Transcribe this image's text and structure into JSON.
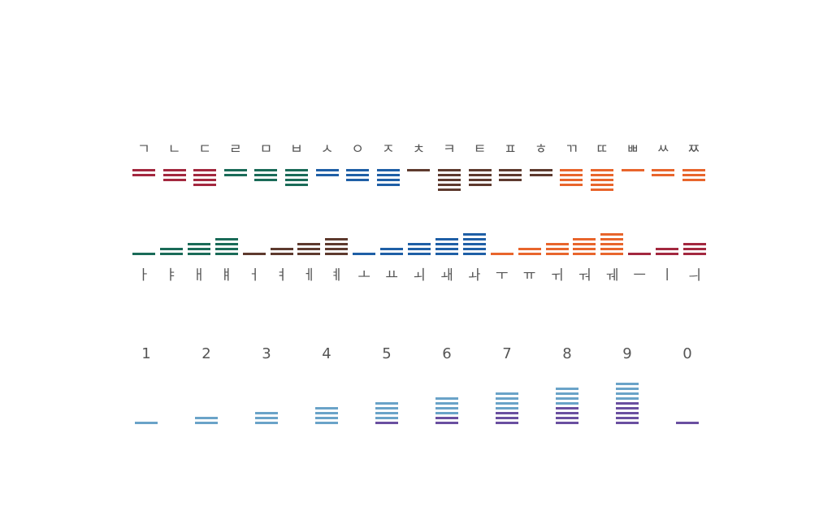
{
  "colors": {
    "crimson": "#a3283f",
    "green": "#1a6b58",
    "blue": "#1f5fa6",
    "brown": "#5e3a2e",
    "orange": "#e8652c",
    "lightblue": "#6aa3c8",
    "purple": "#6a4fa0",
    "label": "#555555"
  },
  "consonants": [
    {
      "glyph": "ㄱ",
      "bars": 2,
      "color": "crimson"
    },
    {
      "glyph": "ㄴ",
      "bars": 3,
      "color": "crimson"
    },
    {
      "glyph": "ㄷ",
      "bars": 4,
      "color": "crimson"
    },
    {
      "glyph": "ㄹ",
      "bars": 2,
      "color": "green"
    },
    {
      "glyph": "ㅁ",
      "bars": 3,
      "color": "green"
    },
    {
      "glyph": "ㅂ",
      "bars": 4,
      "color": "green"
    },
    {
      "glyph": "ㅅ",
      "bars": 2,
      "color": "blue"
    },
    {
      "glyph": "ㅇ",
      "bars": 3,
      "color": "blue"
    },
    {
      "glyph": "ㅈ",
      "bars": 4,
      "color": "blue"
    },
    {
      "glyph": "ㅊ",
      "bars": 1,
      "color": "brown"
    },
    {
      "glyph": "ㅋ",
      "bars": 5,
      "color": "brown"
    },
    {
      "glyph": "ㅌ",
      "bars": 4,
      "color": "brown"
    },
    {
      "glyph": "ㅍ",
      "bars": 3,
      "color": "brown"
    },
    {
      "glyph": "ㅎ",
      "bars": 2,
      "color": "brown"
    },
    {
      "glyph": "ㄲ",
      "bars": 4,
      "color": "orange"
    },
    {
      "glyph": "ㄸ",
      "bars": 5,
      "color": "orange"
    },
    {
      "glyph": "ㅃ",
      "bars": 1,
      "color": "orange"
    },
    {
      "glyph": "ㅆ",
      "bars": 2,
      "color": "orange"
    },
    {
      "glyph": "ㅉ",
      "bars": 3,
      "color": "orange"
    }
  ],
  "vowels": [
    {
      "glyph": "ㅏ",
      "bars": 1,
      "color": "green"
    },
    {
      "glyph": "ㅑ",
      "bars": 2,
      "color": "green"
    },
    {
      "glyph": "ㅐ",
      "bars": 3,
      "color": "green"
    },
    {
      "glyph": "ㅒ",
      "bars": 4,
      "color": "green"
    },
    {
      "glyph": "ㅓ",
      "bars": 1,
      "color": "brown"
    },
    {
      "glyph": "ㅕ",
      "bars": 2,
      "color": "brown"
    },
    {
      "glyph": "ㅔ",
      "bars": 3,
      "color": "brown"
    },
    {
      "glyph": "ㅖ",
      "bars": 4,
      "color": "brown"
    },
    {
      "glyph": "ㅗ",
      "bars": 1,
      "color": "blue"
    },
    {
      "glyph": "ㅛ",
      "bars": 2,
      "color": "blue"
    },
    {
      "glyph": "ㅚ",
      "bars": 3,
      "color": "blue"
    },
    {
      "glyph": "ㅙ",
      "bars": 4,
      "color": "blue"
    },
    {
      "glyph": "ㅘ",
      "bars": 5,
      "color": "blue"
    },
    {
      "glyph": "ㅜ",
      "bars": 1,
      "color": "orange"
    },
    {
      "glyph": "ㅠ",
      "bars": 2,
      "color": "orange"
    },
    {
      "glyph": "ㅟ",
      "bars": 3,
      "color": "orange"
    },
    {
      "glyph": "ㅝ",
      "bars": 4,
      "color": "orange"
    },
    {
      "glyph": "ㅞ",
      "bars": 5,
      "color": "orange"
    },
    {
      "glyph": "ㅡ",
      "bars": 1,
      "color": "crimson"
    },
    {
      "glyph": "ㅣ",
      "bars": 2,
      "color": "crimson"
    },
    {
      "glyph": "ㅢ",
      "bars": 3,
      "color": "crimson"
    }
  ],
  "digits": [
    {
      "glyph": "1",
      "blue_bars": 1,
      "purple_bars": 0
    },
    {
      "glyph": "2",
      "blue_bars": 2,
      "purple_bars": 0
    },
    {
      "glyph": "3",
      "blue_bars": 3,
      "purple_bars": 0
    },
    {
      "glyph": "4",
      "blue_bars": 4,
      "purple_bars": 0
    },
    {
      "glyph": "5",
      "blue_bars": 4,
      "purple_bars": 1
    },
    {
      "glyph": "6",
      "blue_bars": 4,
      "purple_bars": 2
    },
    {
      "glyph": "7",
      "blue_bars": 4,
      "purple_bars": 3
    },
    {
      "glyph": "8",
      "blue_bars": 4,
      "purple_bars": 4
    },
    {
      "glyph": "9",
      "blue_bars": 4,
      "purple_bars": 5
    },
    {
      "glyph": "0",
      "blue_bars": 0,
      "purple_bars": 1
    }
  ]
}
